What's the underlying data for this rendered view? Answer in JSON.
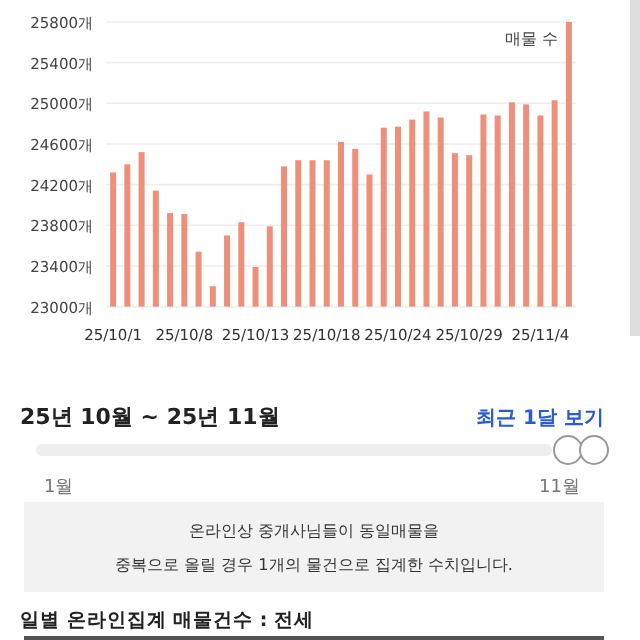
{
  "chart_data": {
    "type": "bar",
    "categories": [
      "25/10/1",
      null,
      null,
      null,
      null,
      "25/10/8",
      null,
      null,
      null,
      null,
      "25/10/13",
      null,
      null,
      null,
      null,
      "25/10/18",
      null,
      null,
      null,
      null,
      "25/10/24",
      null,
      null,
      null,
      null,
      "25/10/29",
      null,
      null,
      null,
      null,
      "25/11/4",
      null,
      null
    ],
    "series": [
      {
        "name": "매물 수",
        "color": "#ee8f7b",
        "values": [
          24320,
          24400,
          24520,
          24140,
          23920,
          23910,
          23540,
          23200,
          23700,
          23830,
          23390,
          23790,
          24380,
          24440,
          24440,
          24440,
          24620,
          24550,
          24300,
          24760,
          24770,
          24840,
          24920,
          24860,
          24510,
          24490,
          24890,
          24880,
          25010,
          24990,
          24880,
          25030,
          25800
        ]
      }
    ],
    "ylim": [
      23000,
      25800
    ],
    "yticks": [
      {
        "value": 23000,
        "label": "23000개"
      },
      {
        "value": 23400,
        "label": "23400개"
      },
      {
        "value": 23800,
        "label": "23800개"
      },
      {
        "value": 24200,
        "label": "24200개"
      },
      {
        "value": 24600,
        "label": "24600개"
      },
      {
        "value": 25000,
        "label": "25000개"
      },
      {
        "value": 25400,
        "label": "25400개"
      },
      {
        "value": 25800,
        "label": "25800개"
      }
    ],
    "grid": "y",
    "legend": "top right",
    "annotations": [
      "25년 10월 ~ 25년 11월",
      "최근 1달 보기",
      "1월",
      "11월",
      "온라인상 중개사님들이 동일매물을\n중복으로 올릴 경우 1개의 물건으로 집계한 수치입니다.",
      "일별 온라인집계 매물건수 : 전세"
    ]
  }
}
